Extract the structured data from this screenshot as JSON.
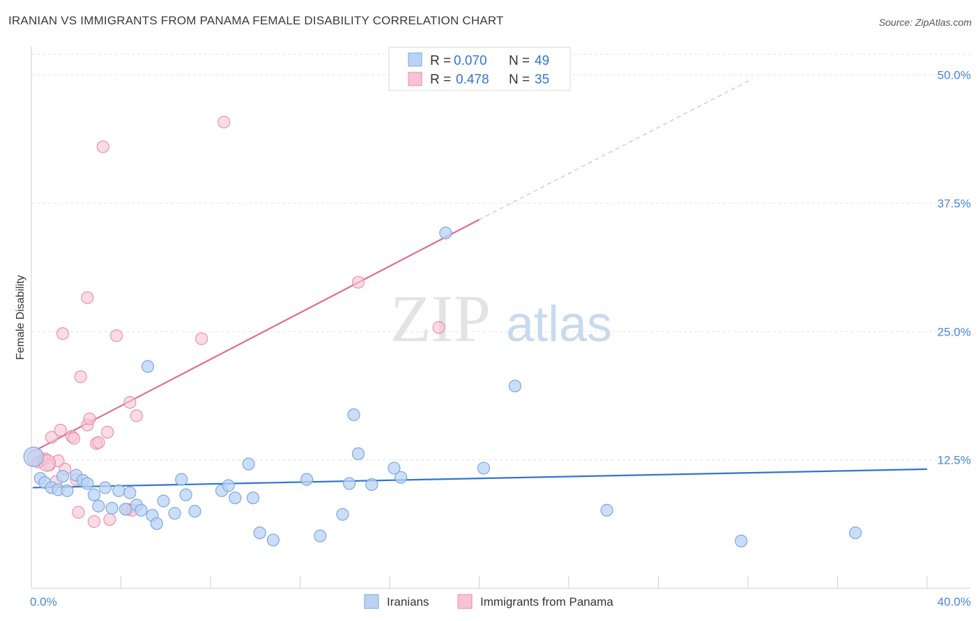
{
  "title": "IRANIAN VS IMMIGRANTS FROM PANAMA FEMALE DISABILITY CORRELATION CHART",
  "source": "Source: ZipAtlas.com",
  "watermark": {
    "zip": "ZIP",
    "atlas": "atlas"
  },
  "colors": {
    "blue_fill": "#b9d3f5",
    "blue_stroke": "#7aa7e0",
    "blue_line": "#2f74d0",
    "pink_fill": "#f8c3d4",
    "pink_stroke": "#e98aa8",
    "pink_line": "#e06b94",
    "tick_text": "#4a86d6",
    "grid": "#e3e3e3"
  },
  "legend": {
    "rows": [
      {
        "r_label": "R =",
        "r_value": "0.070",
        "n_label": "N =",
        "n_value": "49"
      },
      {
        "r_label": "R =",
        "r_value": "0.478",
        "n_label": "N =",
        "n_value": "35"
      }
    ]
  },
  "chart_data": {
    "type": "scatter",
    "title": "IRANIAN VS IMMIGRANTS FROM PANAMA FEMALE DISABILITY CORRELATION CHART",
    "xlabel": "",
    "ylabel": "Female Disability",
    "xlim": [
      0,
      40
    ],
    "ylim": [
      0,
      52
    ],
    "x_tick_labels": [
      "0.0%",
      "40.0%"
    ],
    "y_ticks": [
      12.5,
      25.0,
      37.5,
      50.0
    ],
    "y_tick_labels": [
      "12.5%",
      "25.0%",
      "37.5%",
      "50.0%"
    ],
    "grid": true,
    "legend_position": "top-center",
    "series": [
      {
        "name": "Iranians",
        "color": "#b9d3f5",
        "points": [
          [
            0.1,
            12.8
          ],
          [
            0.4,
            10.7
          ],
          [
            0.6,
            10.3
          ],
          [
            0.9,
            9.8
          ],
          [
            1.2,
            9.6
          ],
          [
            1.4,
            10.9
          ],
          [
            1.6,
            9.5
          ],
          [
            2.0,
            11.0
          ],
          [
            2.3,
            10.5
          ],
          [
            2.5,
            10.2
          ],
          [
            2.8,
            9.1
          ],
          [
            3.0,
            8.0
          ],
          [
            3.3,
            9.8
          ],
          [
            3.6,
            7.8
          ],
          [
            3.9,
            9.5
          ],
          [
            4.2,
            7.7
          ],
          [
            4.4,
            9.3
          ],
          [
            4.7,
            8.1
          ],
          [
            4.9,
            7.6
          ],
          [
            5.2,
            21.6
          ],
          [
            5.4,
            7.1
          ],
          [
            5.6,
            6.3
          ],
          [
            5.9,
            8.5
          ],
          [
            6.4,
            7.3
          ],
          [
            6.7,
            10.6
          ],
          [
            6.9,
            9.1
          ],
          [
            7.3,
            7.5
          ],
          [
            8.5,
            9.5
          ],
          [
            8.8,
            10.0
          ],
          [
            9.1,
            8.8
          ],
          [
            9.7,
            12.1
          ],
          [
            9.9,
            8.8
          ],
          [
            10.2,
            5.4
          ],
          [
            10.8,
            4.7
          ],
          [
            12.3,
            10.6
          ],
          [
            12.9,
            5.1
          ],
          [
            13.9,
            7.2
          ],
          [
            14.2,
            10.2
          ],
          [
            14.4,
            16.9
          ],
          [
            14.6,
            13.1
          ],
          [
            15.2,
            10.1
          ],
          [
            16.2,
            11.7
          ],
          [
            16.5,
            10.8
          ],
          [
            18.5,
            34.6
          ],
          [
            20.2,
            11.7
          ],
          [
            21.6,
            19.7
          ],
          [
            25.7,
            7.6
          ],
          [
            31.7,
            4.6
          ],
          [
            36.8,
            5.4
          ]
        ]
      },
      {
        "name": "Immigrants from Panama",
        "color": "#f8c3d4",
        "points": [
          [
            0.2,
            12.7
          ],
          [
            0.3,
            12.3
          ],
          [
            0.5,
            12.5
          ],
          [
            0.6,
            12.6
          ],
          [
            0.8,
            12.0
          ],
          [
            0.9,
            14.7
          ],
          [
            1.1,
            10.4
          ],
          [
            1.2,
            12.4
          ],
          [
            1.3,
            15.4
          ],
          [
            1.4,
            24.8
          ],
          [
            1.5,
            11.6
          ],
          [
            1.8,
            14.8
          ],
          [
            1.9,
            14.6
          ],
          [
            2.0,
            10.6
          ],
          [
            2.1,
            7.4
          ],
          [
            2.2,
            20.6
          ],
          [
            2.5,
            15.9
          ],
          [
            2.5,
            28.3
          ],
          [
            2.6,
            16.5
          ],
          [
            2.8,
            6.5
          ],
          [
            2.9,
            14.1
          ],
          [
            3.0,
            14.2
          ],
          [
            3.2,
            43.0
          ],
          [
            3.4,
            15.2
          ],
          [
            3.5,
            6.7
          ],
          [
            3.8,
            24.6
          ],
          [
            4.3,
            7.7
          ],
          [
            4.4,
            18.1
          ],
          [
            4.5,
            7.6
          ],
          [
            4.7,
            16.8
          ],
          [
            7.6,
            24.3
          ],
          [
            8.6,
            45.4
          ],
          [
            14.6,
            29.8
          ],
          [
            18.2,
            25.4
          ],
          [
            0.7,
            12.2
          ]
        ]
      }
    ],
    "trend_lines": [
      {
        "series": "Iranians",
        "x": [
          0,
          40
        ],
        "y": [
          9.8,
          11.6
        ]
      },
      {
        "series": "Immigrants from Panama",
        "solid_x": [
          0,
          20
        ],
        "solid_y": [
          13.3,
          35.9
        ],
        "dashed_x": [
          20,
          32.2
        ],
        "dashed_y": [
          35.9,
          49.6
        ]
      }
    ]
  },
  "bottom_legend": [
    {
      "label": "Iranians"
    },
    {
      "label": "Immigrants from Panama"
    }
  ]
}
